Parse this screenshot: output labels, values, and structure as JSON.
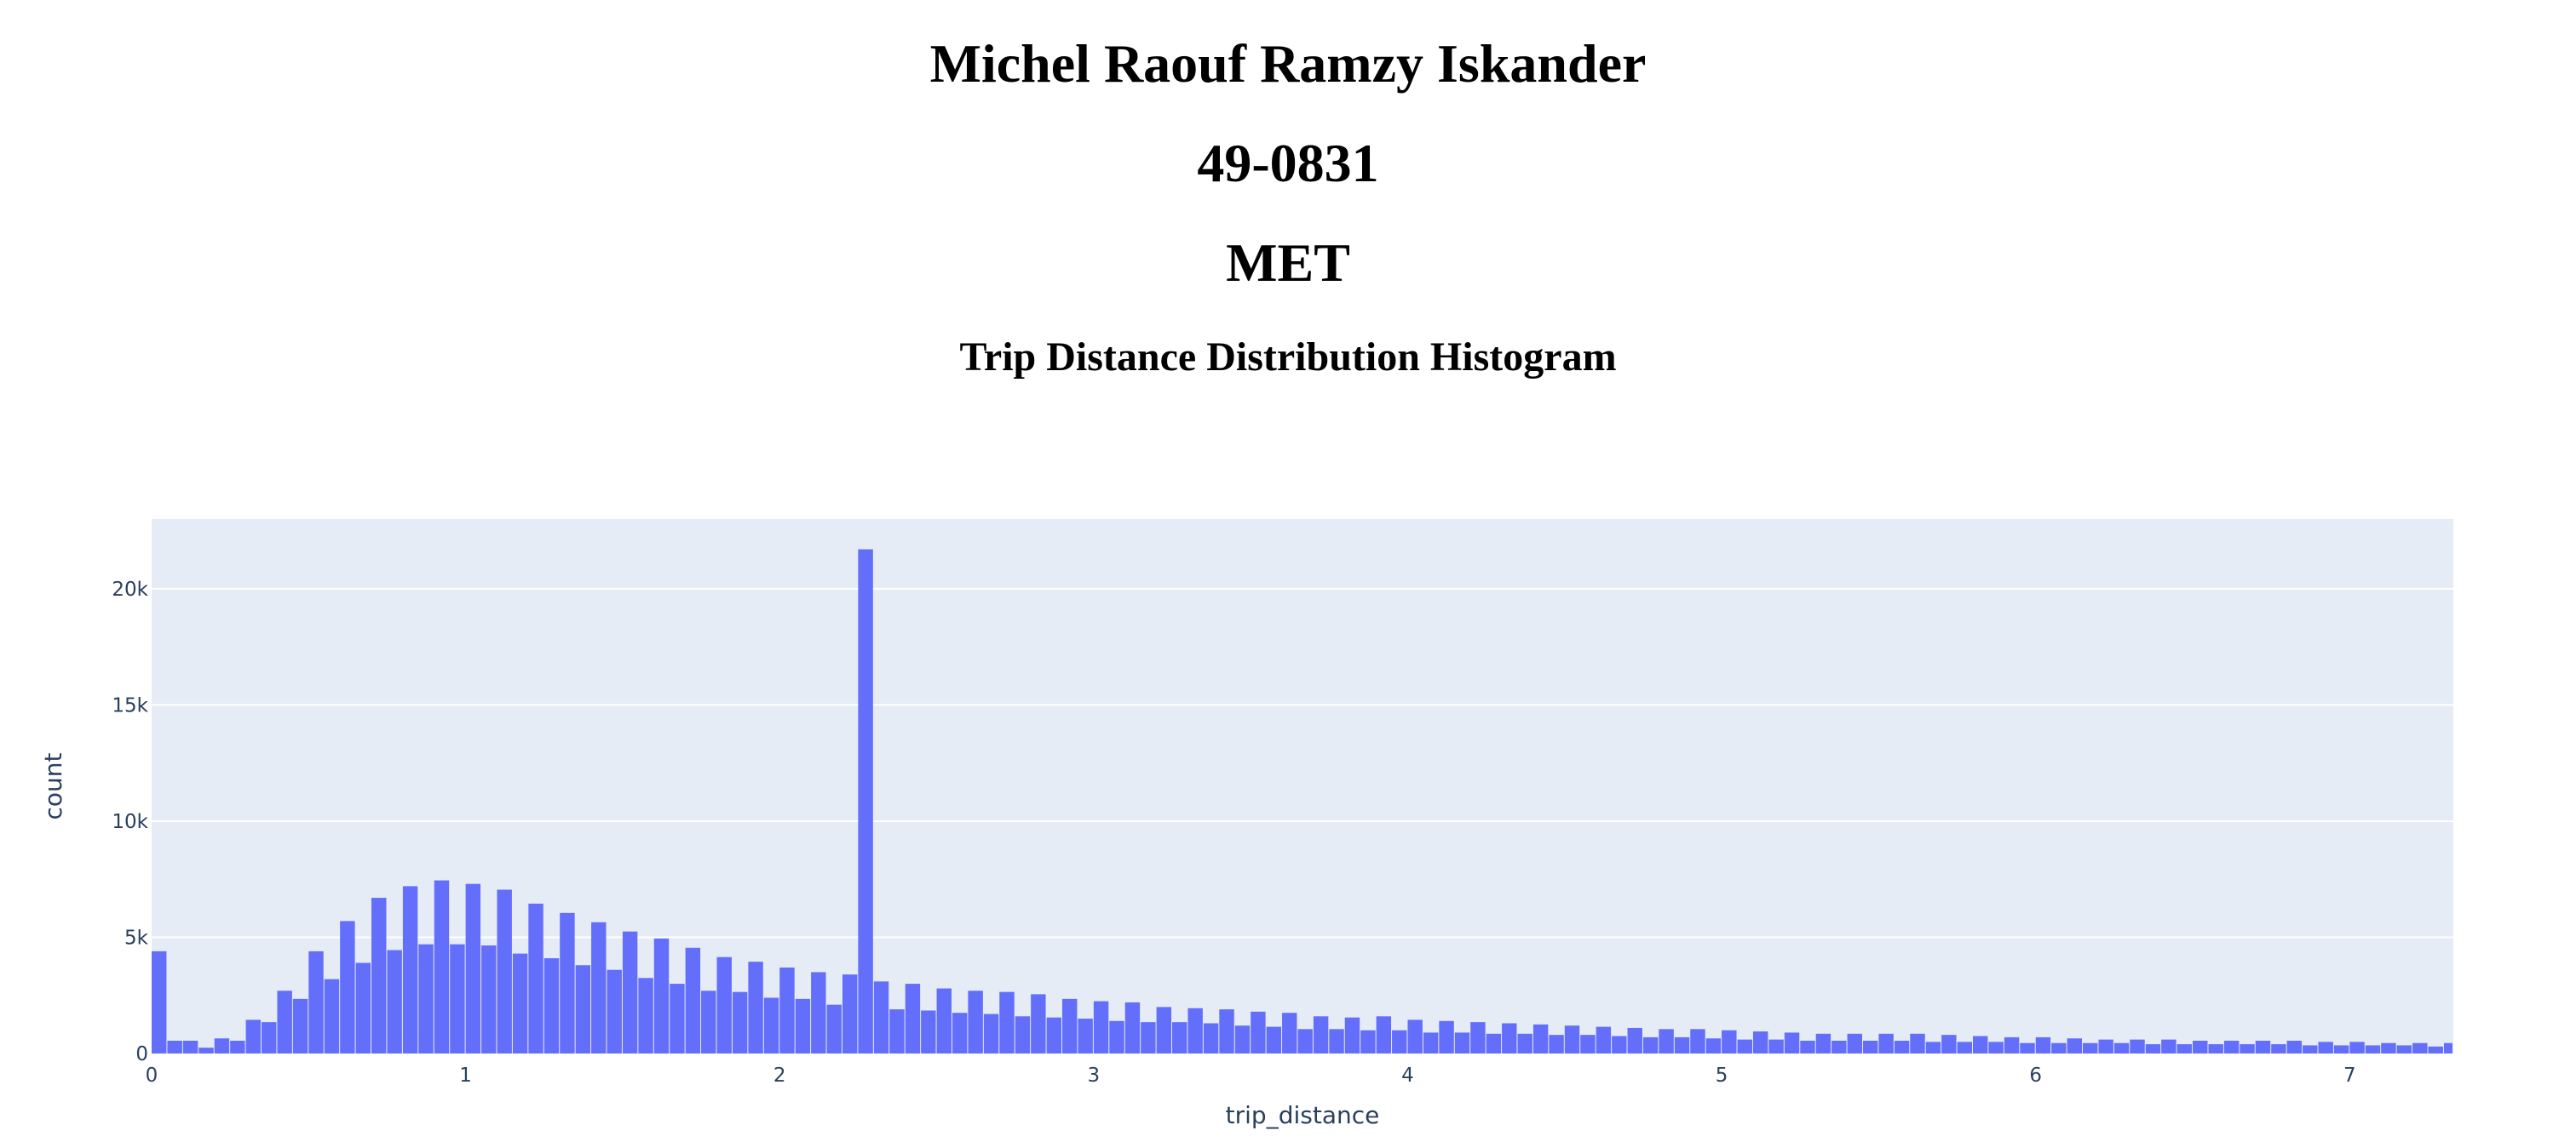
{
  "header": {
    "name": "Michel Raouf Ramzy Iskander",
    "student_id": "49-0831",
    "department": "MET"
  },
  "colors": {
    "plot_background": "#e5ecf6",
    "bar": "#636efa",
    "grid": "#ffffff",
    "text": "#2a3f5f"
  },
  "chart_data": {
    "type": "bar",
    "title": "Trip Distance Distribution Histogram",
    "xlabel": "trip_distance",
    "ylabel": "count",
    "xlim": [
      0,
      7.33
    ],
    "ylim": [
      0,
      23000
    ],
    "bin_width": 0.05,
    "x_ticks": [
      "0",
      "1",
      "2",
      "3",
      "4",
      "5",
      "6",
      "7"
    ],
    "x_tick_values": [
      0,
      1,
      2,
      3,
      4,
      5,
      6,
      7
    ],
    "y_ticks": [
      "0",
      "5k",
      "10k",
      "15k",
      "20k"
    ],
    "y_tick_values": [
      0,
      5000,
      10000,
      15000,
      20000
    ],
    "grid": true,
    "bin_starts": [
      0.0,
      0.05,
      0.1,
      0.15,
      0.2,
      0.25,
      0.3,
      0.35,
      0.4,
      0.45,
      0.5,
      0.55,
      0.6,
      0.65,
      0.7,
      0.75,
      0.8,
      0.85,
      0.9,
      0.95,
      1.0,
      1.05,
      1.1,
      1.15,
      1.2,
      1.25,
      1.3,
      1.35,
      1.4,
      1.45,
      1.5,
      1.55,
      1.6,
      1.65,
      1.7,
      1.75,
      1.8,
      1.85,
      1.9,
      1.95,
      2.0,
      2.05,
      2.1,
      2.15,
      2.2,
      2.25,
      2.3,
      2.35,
      2.4,
      2.45,
      2.5,
      2.55,
      2.6,
      2.65,
      2.7,
      2.75,
      2.8,
      2.85,
      2.9,
      2.95,
      3.0,
      3.05,
      3.1,
      3.15,
      3.2,
      3.25,
      3.3,
      3.35,
      3.4,
      3.45,
      3.5,
      3.55,
      3.6,
      3.65,
      3.7,
      3.75,
      3.8,
      3.85,
      3.9,
      3.95,
      4.0,
      4.05,
      4.1,
      4.15,
      4.2,
      4.25,
      4.3,
      4.35,
      4.4,
      4.45,
      4.5,
      4.55,
      4.6,
      4.65,
      4.7,
      4.75,
      4.8,
      4.85,
      4.9,
      4.95,
      5.0,
      5.05,
      5.1,
      5.15,
      5.2,
      5.25,
      5.3,
      5.35,
      5.4,
      5.45,
      5.5,
      5.55,
      5.6,
      5.65,
      5.7,
      5.75,
      5.8,
      5.85,
      5.9,
      5.95,
      6.0,
      6.05,
      6.1,
      6.15,
      6.2,
      6.25,
      6.3,
      6.35,
      6.4,
      6.45,
      6.5,
      6.55,
      6.6,
      6.65,
      6.7,
      6.75,
      6.8,
      6.85,
      6.9,
      6.95,
      7.0,
      7.05,
      7.1,
      7.15,
      7.2,
      7.25,
      7.3
    ],
    "values": [
      4400,
      550,
      550,
      250,
      650,
      550,
      1450,
      1350,
      2700,
      2350,
      4400,
      3200,
      5700,
      3900,
      6700,
      4450,
      7200,
      4700,
      7450,
      4700,
      7300,
      4650,
      7050,
      4300,
      6450,
      4100,
      6050,
      3800,
      5650,
      3600,
      5250,
      3250,
      4950,
      3000,
      4550,
      2700,
      4150,
      2650,
      3950,
      2400,
      3700,
      2350,
      3500,
      2100,
      3400,
      21700,
      3100,
      1900,
      3000,
      1850,
      2800,
      1750,
      2700,
      1700,
      2650,
      1600,
      2550,
      1550,
      2350,
      1500,
      2250,
      1400,
      2200,
      1350,
      2000,
      1350,
      1950,
      1300,
      1900,
      1200,
      1800,
      1150,
      1750,
      1050,
      1600,
      1050,
      1550,
      1000,
      1600,
      1000,
      1450,
      900,
      1400,
      900,
      1350,
      850,
      1300,
      850,
      1250,
      800,
      1200,
      800,
      1150,
      750,
      1100,
      700,
      1050,
      700,
      1050,
      650,
      1000,
      600,
      950,
      600,
      900,
      550,
      850,
      550,
      850,
      550,
      850,
      550,
      850,
      500,
      800,
      500,
      750,
      500,
      700,
      450,
      700,
      450,
      650,
      450,
      600,
      450,
      600,
      400,
      600,
      400,
      550,
      400,
      550,
      400,
      550,
      400,
      550,
      350,
      500,
      350,
      500,
      350,
      450,
      350,
      450,
      300,
      450
    ]
  }
}
